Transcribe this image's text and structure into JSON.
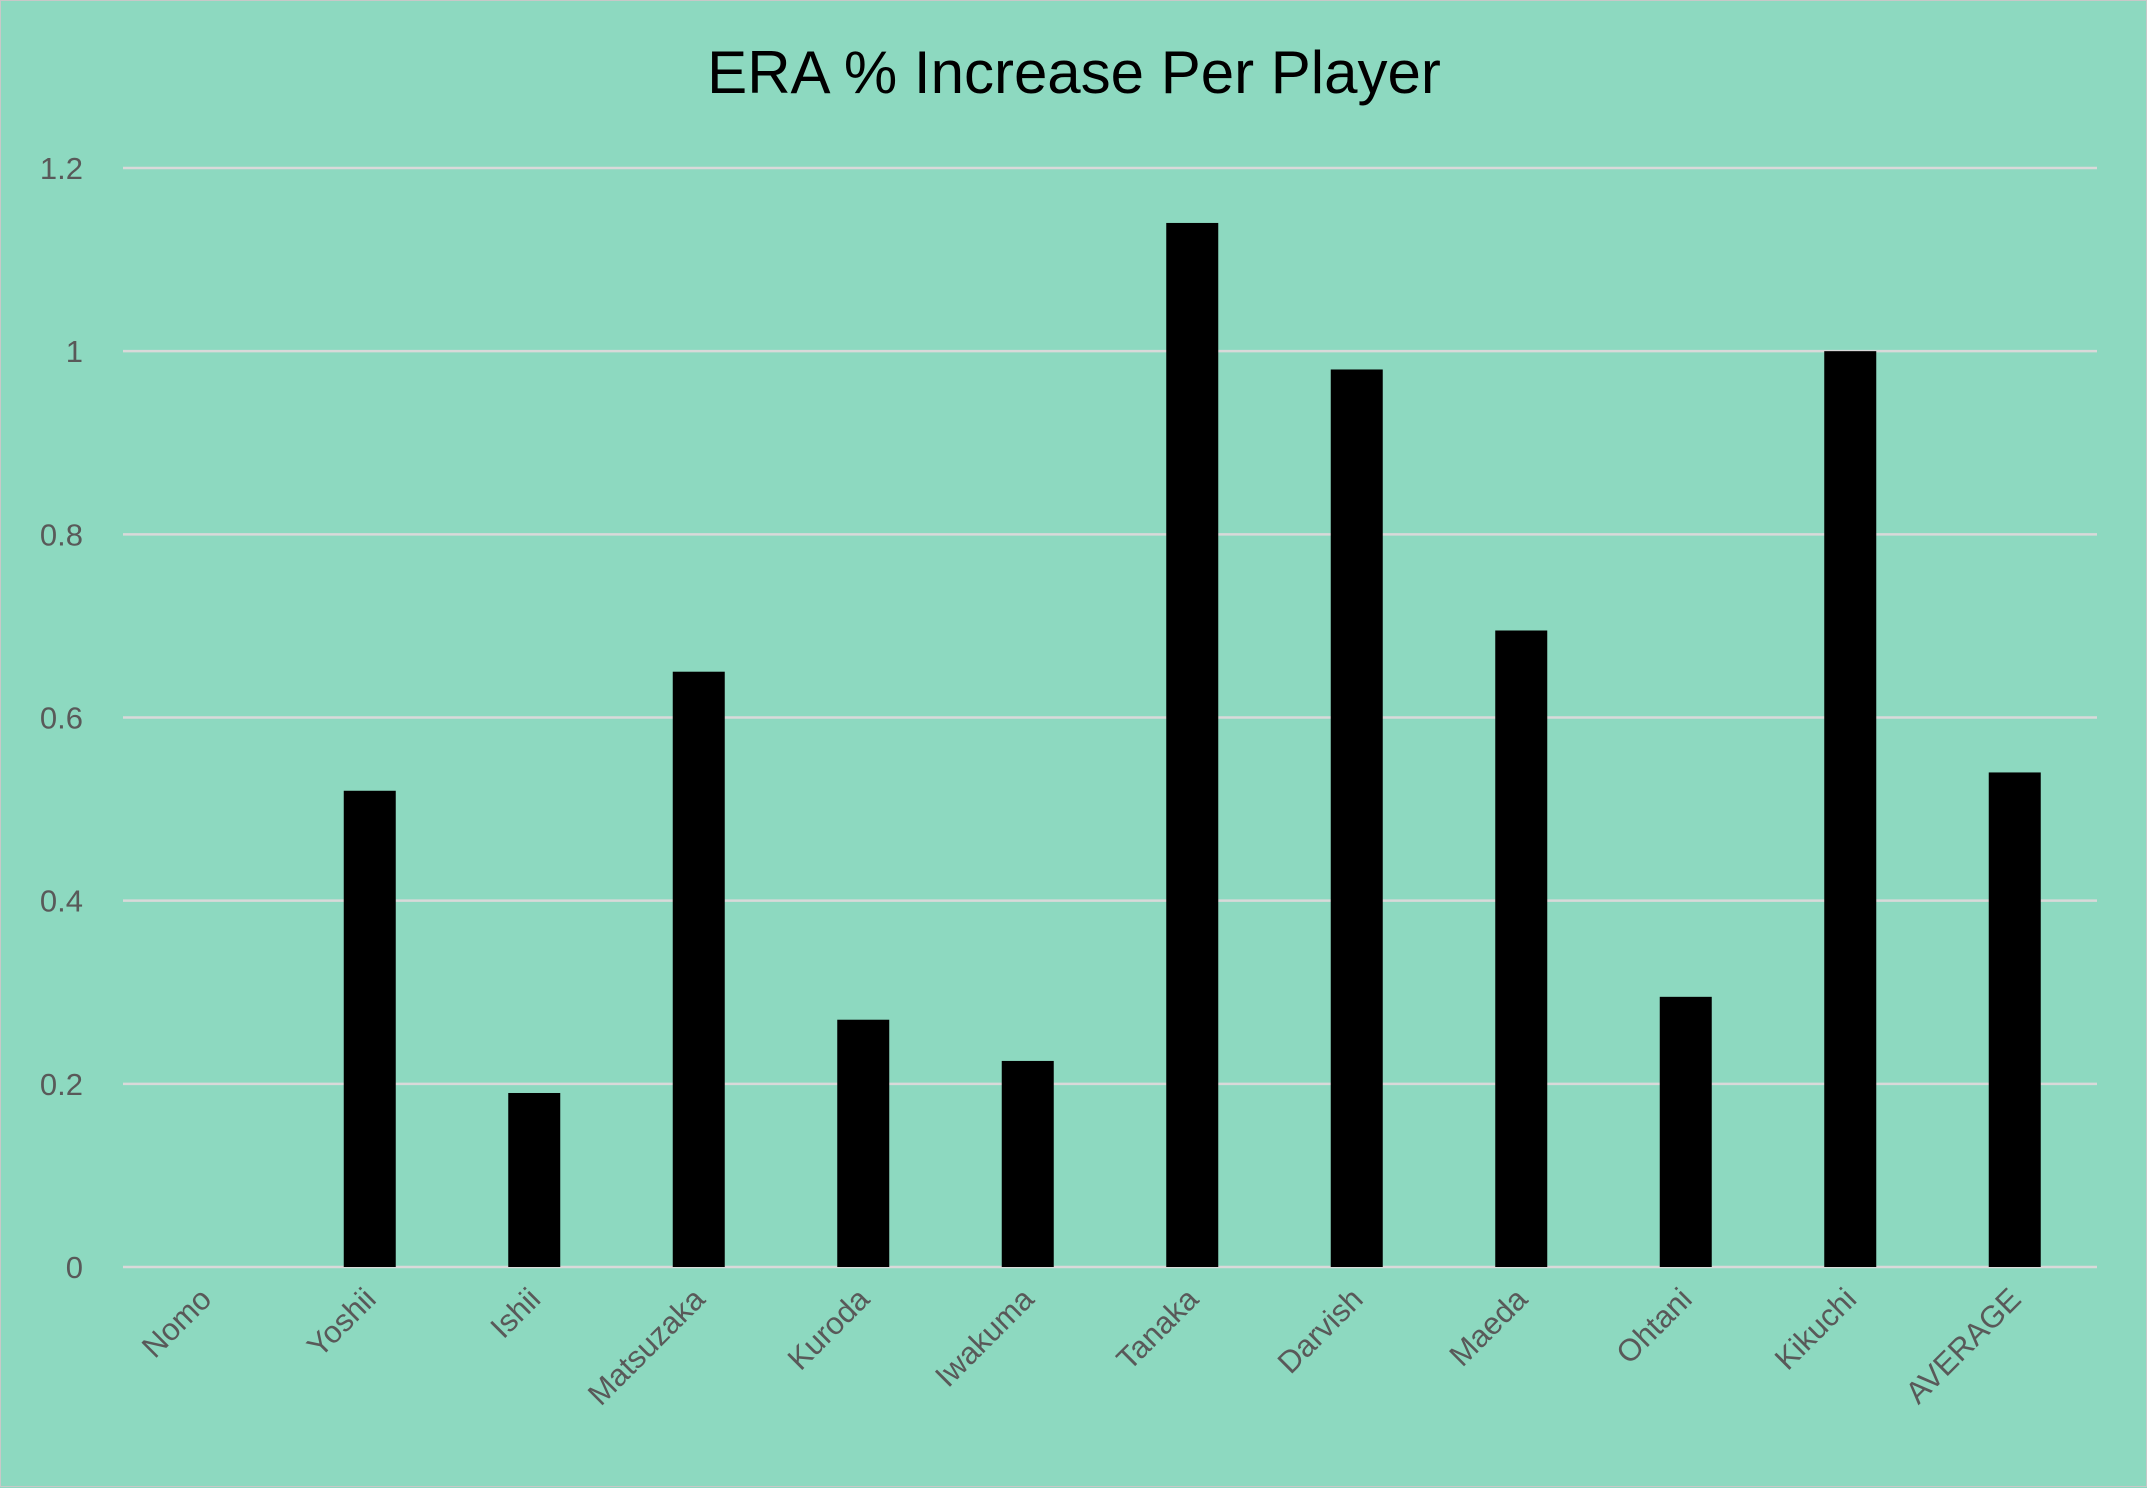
{
  "chart_data": {
    "type": "bar",
    "title": "ERA % Increase Per Player",
    "xlabel": "",
    "ylabel": "",
    "categories": [
      "Nomo",
      "Yoshii",
      "Ishii",
      "Matsuzaka",
      "Kuroda",
      "Iwakuma",
      "Tanaka",
      "Darvish",
      "Maeda",
      "Ohtani",
      "Kikuchi",
      "AVERAGE"
    ],
    "values": [
      0,
      0.52,
      0.19,
      0.65,
      0.27,
      0.225,
      1.14,
      0.98,
      0.695,
      0.295,
      1.0,
      0.54
    ],
    "ylim": [
      0,
      1.2
    ],
    "yticks": [
      "0",
      "0.2",
      "0.4",
      "0.6",
      "0.8",
      "1",
      "1.2"
    ],
    "grid": true,
    "legend": "none",
    "colors": {
      "background": "#8dd9c0",
      "bar": "#000000",
      "grid": "#d9d9d9",
      "tick_text": "#595959"
    }
  }
}
